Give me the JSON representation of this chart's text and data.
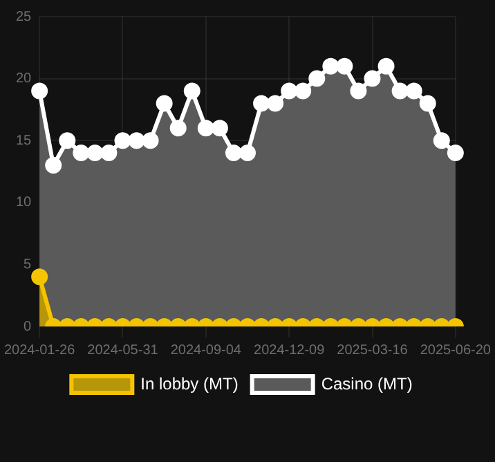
{
  "chart_data": {
    "type": "area",
    "categories": [
      "2024-01-26",
      null,
      null,
      null,
      null,
      null,
      "2024-05-31",
      null,
      null,
      null,
      null,
      null,
      "2024-09-04",
      null,
      null,
      null,
      null,
      null,
      "2024-12-09",
      null,
      null,
      null,
      null,
      null,
      "2025-03-16",
      null,
      null,
      null,
      null,
      null,
      "2025-06-20"
    ],
    "series": [
      {
        "name": "In lobby (MT)",
        "color": "#f5c400",
        "values": [
          4,
          0,
          0,
          0,
          0,
          0,
          0,
          0,
          0,
          0,
          0,
          0,
          0,
          0,
          0,
          0,
          0,
          0,
          0,
          0,
          0,
          0,
          0,
          0,
          0,
          0,
          0,
          0,
          0,
          0,
          0
        ]
      },
      {
        "name": "Casino (MT)",
        "color": "#ffffff",
        "values": [
          19,
          13,
          15,
          14,
          14,
          14,
          15,
          15,
          15,
          18,
          16,
          19,
          16,
          16,
          14,
          14,
          18,
          18,
          19,
          19,
          20,
          21,
          21,
          19,
          20,
          21,
          19,
          19,
          18,
          15,
          14
        ]
      }
    ],
    "ylim": [
      0,
      25
    ],
    "yticks": [
      0,
      5,
      10,
      15,
      20,
      25
    ],
    "grid": true,
    "legend": "bottom",
    "marker": "circle"
  }
}
